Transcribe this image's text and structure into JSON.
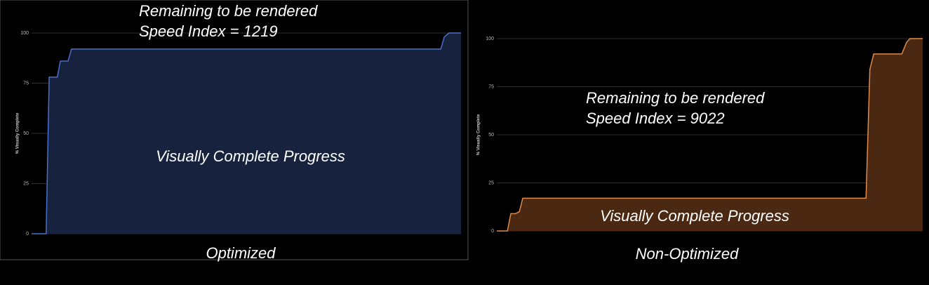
{
  "chart_data": [
    {
      "type": "area",
      "caption": "Optimized",
      "y_label": "% Visually Complete",
      "annotations": [
        "Remaining to be rendered",
        "Speed Index = 1219",
        "Visually Complete Progress"
      ],
      "x": [
        0,
        3.4,
        4.1,
        6.0,
        6.7,
        8.5,
        9.3,
        95.3,
        96.1,
        97.2,
        100
      ],
      "values": [
        0,
        0,
        78,
        78,
        86,
        86,
        92,
        92,
        98,
        100,
        100
      ],
      "xlim": [
        0,
        100
      ],
      "ylim": [
        0,
        100
      ],
      "yticks": [
        0,
        25,
        50,
        75,
        100
      ],
      "grid": true,
      "color": "#4a6fc9",
      "fill_color": "#17223f"
    },
    {
      "type": "area",
      "caption": "Non-Optimized",
      "y_label": "% Visually Complete",
      "annotations": [
        "Remaining to be rendered",
        "Speed Index = 9022",
        "Visually Complete Progress"
      ],
      "x": [
        0,
        2.5,
        3.3,
        4.4,
        5.3,
        6.1,
        86.7,
        87.6,
        88.5,
        95.1,
        96.2,
        97.0,
        100
      ],
      "values": [
        0,
        0,
        9,
        9,
        10,
        17,
        17,
        84,
        92,
        92,
        98,
        100,
        100
      ],
      "xlim": [
        0,
        100
      ],
      "ylim": [
        0,
        100
      ],
      "yticks": [
        0,
        25,
        50,
        75,
        100
      ],
      "grid": true,
      "color": "#e08a4a",
      "fill_color": "#4a2812"
    }
  ]
}
